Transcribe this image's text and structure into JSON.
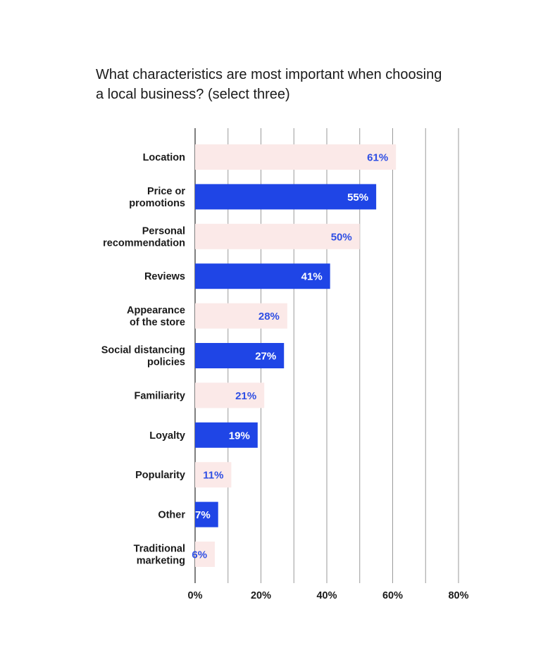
{
  "chart_data": {
    "type": "bar",
    "orientation": "horizontal",
    "title_lines": [
      "What characteristics are most important when choosing",
      "a local business? (select three)"
    ],
    "categories": [
      [
        "Location"
      ],
      [
        "Price or",
        "promotions"
      ],
      [
        "Personal",
        "recommendation"
      ],
      [
        "Reviews"
      ],
      [
        "Appearance",
        "of the store"
      ],
      [
        "Social distancing",
        "policies"
      ],
      [
        "Familiarity"
      ],
      [
        "Loyalty"
      ],
      [
        "Popularity"
      ],
      [
        "Other"
      ],
      [
        "Traditional",
        "marketing"
      ]
    ],
    "values": [
      61,
      55,
      50,
      41,
      28,
      27,
      21,
      19,
      11,
      7,
      6
    ],
    "value_labels": [
      "61%",
      "55%",
      "50%",
      "41%",
      "28%",
      "27%",
      "21%",
      "19%",
      "11%",
      "7%",
      "6%"
    ],
    "xlim": [
      0,
      80
    ],
    "x_ticks": [
      0,
      20,
      40,
      60,
      80
    ],
    "x_tick_labels": [
      "0%",
      "20%",
      "40%",
      "60%",
      "80%"
    ],
    "grid_step": 10,
    "grid": true,
    "bar_colors": [
      "#fbe9e8",
      "#1f45e6"
    ],
    "label_colors": [
      "#2f4fe4",
      "#ffffff"
    ],
    "grid_color": "#9a9a9a",
    "axis_color": "#555555"
  }
}
